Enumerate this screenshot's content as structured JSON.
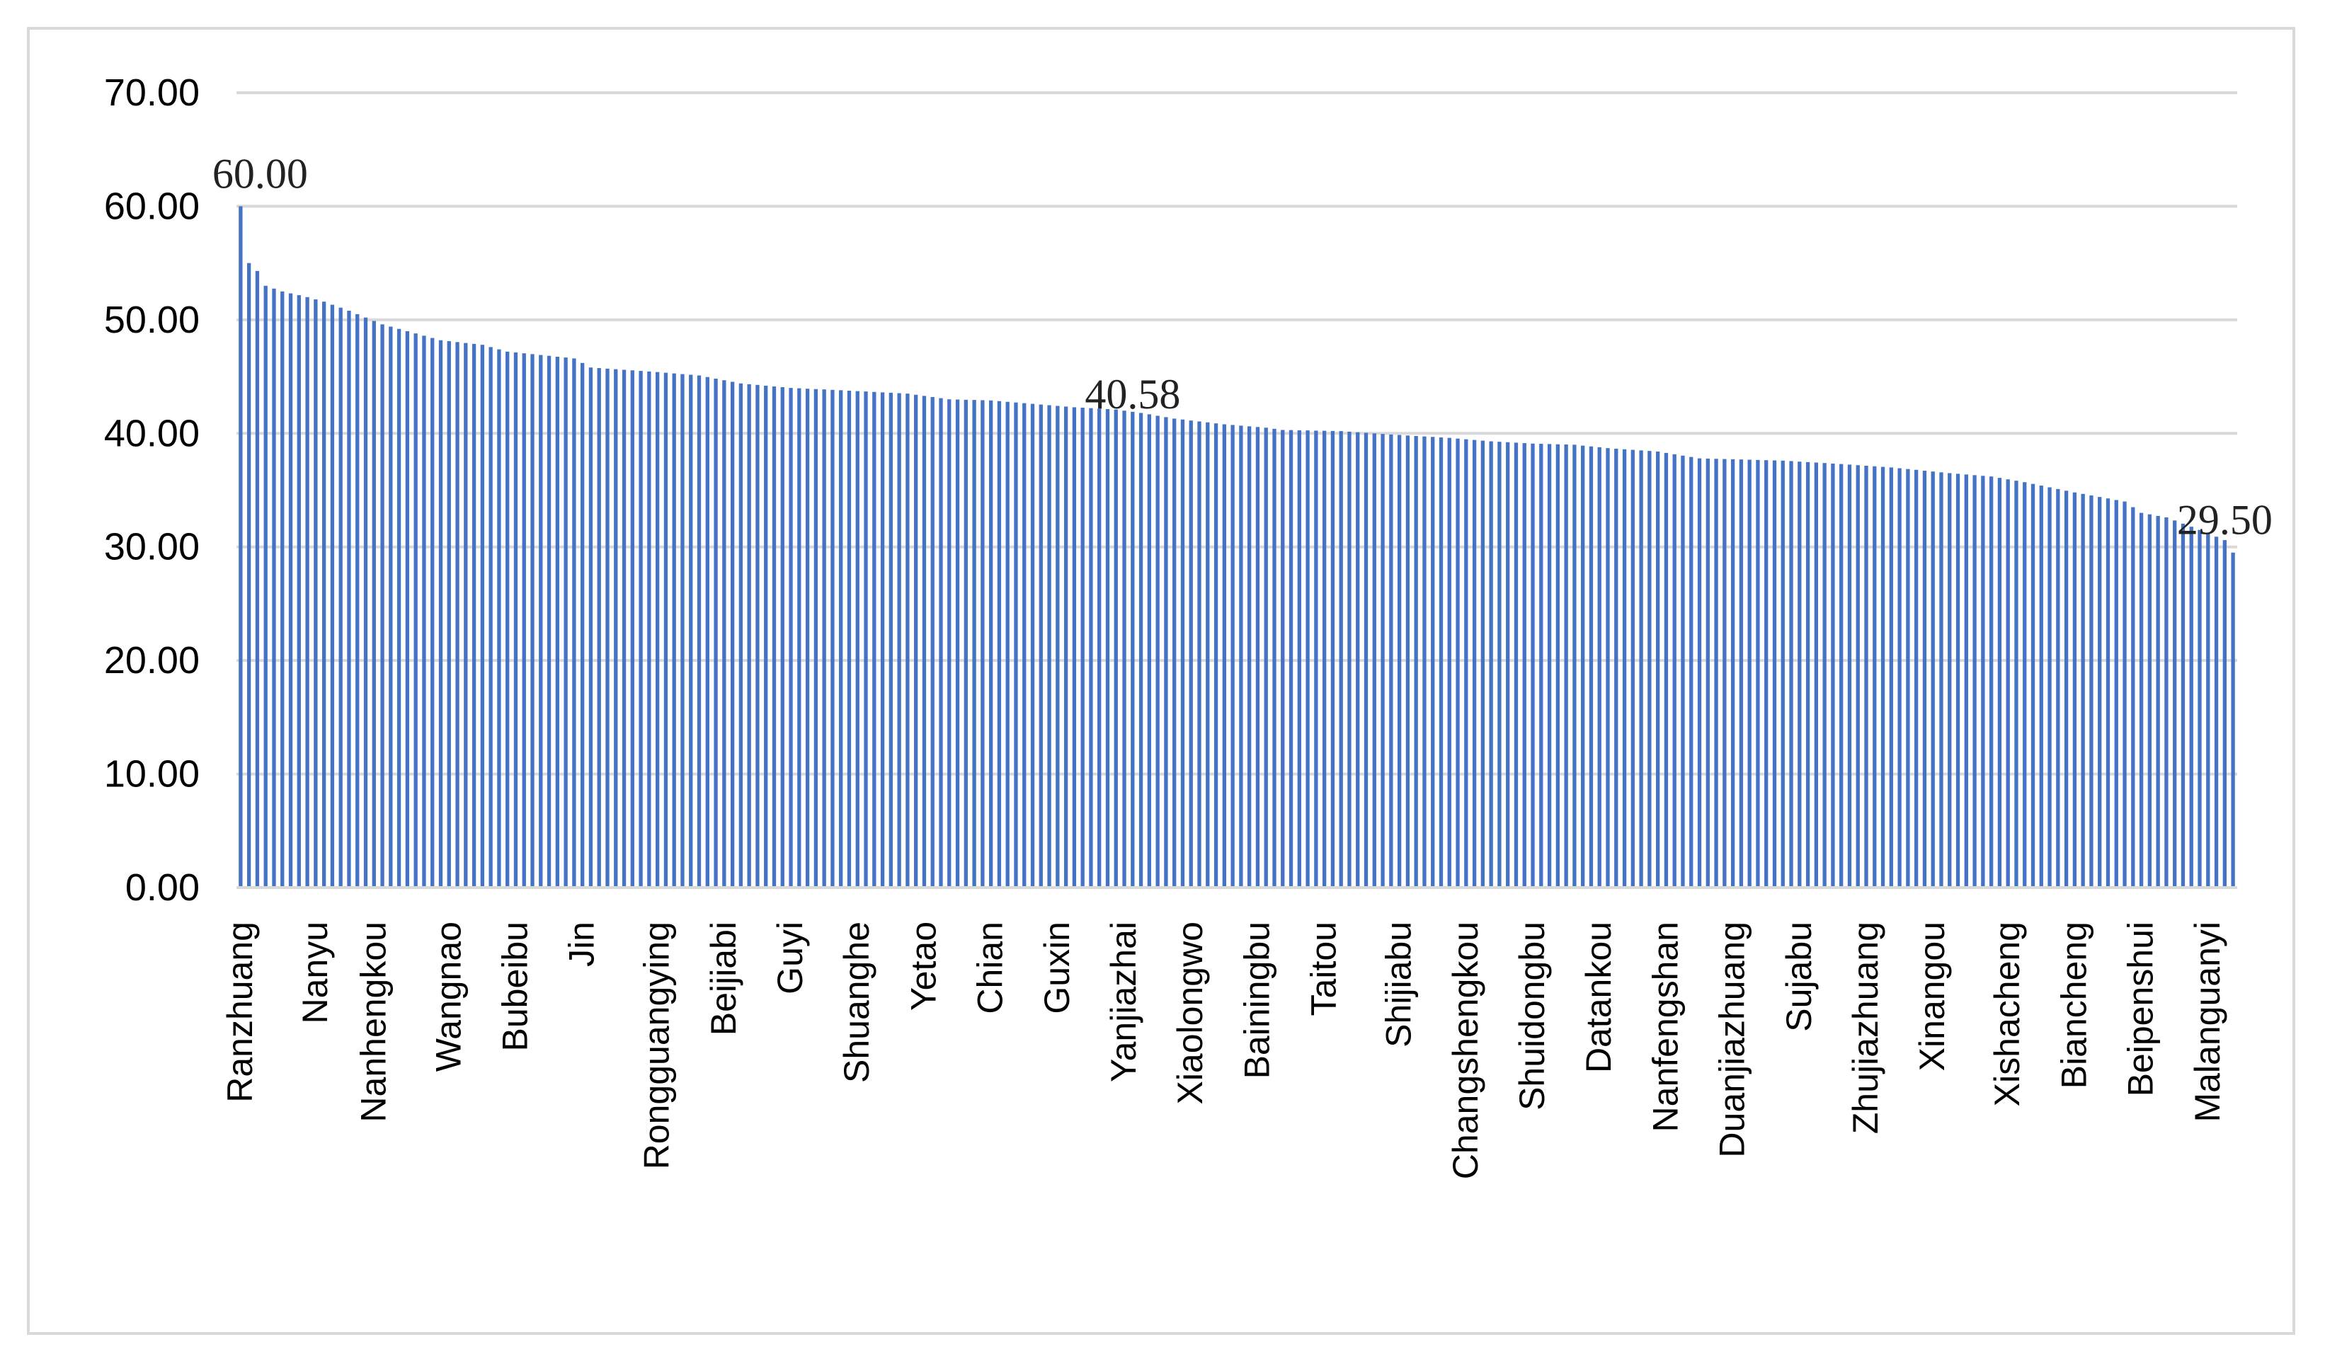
{
  "chart_data": {
    "type": "bar",
    "title": "",
    "xlabel": "",
    "ylabel": "",
    "ylim": [
      0,
      70
    ],
    "yticks": [
      "0.00",
      "10.00",
      "20.00",
      "30.00",
      "40.00",
      "50.00",
      "60.00",
      "70.00"
    ],
    "grid": true,
    "legend": "none",
    "bar_color": "#4472c4",
    "grid_color": "#d9d9d9",
    "bar_count": 240,
    "value_profile": [
      [
        0,
        60.0
      ],
      [
        1,
        55.0
      ],
      [
        2,
        54.3
      ],
      [
        3,
        53.0
      ],
      [
        5,
        52.5
      ],
      [
        8,
        52.0
      ],
      [
        10,
        51.6
      ],
      [
        13,
        50.8
      ],
      [
        17,
        49.6
      ],
      [
        20,
        49.0
      ],
      [
        24,
        48.2
      ],
      [
        29,
        47.8
      ],
      [
        32,
        47.2
      ],
      [
        40,
        46.6
      ],
      [
        42,
        45.8
      ],
      [
        50,
        45.4
      ],
      [
        55,
        45.1
      ],
      [
        60,
        44.4
      ],
      [
        66,
        44.0
      ],
      [
        72,
        43.8
      ],
      [
        80,
        43.5
      ],
      [
        85,
        43.0
      ],
      [
        90,
        42.9
      ],
      [
        95,
        42.6
      ],
      [
        100,
        42.3
      ],
      [
        105,
        42.1
      ],
      [
        108,
        41.8
      ],
      [
        112,
        41.3
      ],
      [
        118,
        40.8
      ],
      [
        123,
        40.5
      ],
      [
        125,
        40.3
      ],
      [
        132,
        40.2
      ],
      [
        138,
        39.9
      ],
      [
        145,
        39.6
      ],
      [
        150,
        39.3
      ],
      [
        155,
        39.1
      ],
      [
        160,
        39.0
      ],
      [
        164,
        38.7
      ],
      [
        170,
        38.4
      ],
      [
        175,
        37.8
      ],
      [
        185,
        37.6
      ],
      [
        192,
        37.3
      ],
      [
        198,
        37.0
      ],
      [
        205,
        36.5
      ],
      [
        210,
        36.2
      ],
      [
        214,
        35.7
      ],
      [
        220,
        34.8
      ],
      [
        226,
        34.0
      ],
      [
        228,
        33.0
      ],
      [
        231,
        32.6
      ],
      [
        235,
        31.5
      ],
      [
        238,
        30.6
      ],
      [
        239,
        29.5
      ]
    ],
    "category_labels": [
      {
        "index": 0,
        "label": "Ranzhuang"
      },
      {
        "index": 9,
        "label": "Nanyu"
      },
      {
        "index": 16,
        "label": "Nanhengkou"
      },
      {
        "index": 25,
        "label": "Wangnao"
      },
      {
        "index": 33,
        "label": "Bubeibu"
      },
      {
        "index": 41,
        "label": "Jin"
      },
      {
        "index": 50,
        "label": "Rongguangying"
      },
      {
        "index": 58,
        "label": "Beijiabi"
      },
      {
        "index": 66,
        "label": "Guyi"
      },
      {
        "index": 74,
        "label": "Shuanghe"
      },
      {
        "index": 82,
        "label": "Yetao"
      },
      {
        "index": 90,
        "label": "Chian"
      },
      {
        "index": 98,
        "label": "Guxin"
      },
      {
        "index": 106,
        "label": "Yanjiazhai"
      },
      {
        "index": 114,
        "label": "Xiaolongwo"
      },
      {
        "index": 122,
        "label": "Bainingbu"
      },
      {
        "index": 130,
        "label": "Taitou"
      },
      {
        "index": 139,
        "label": "Shijiabu"
      },
      {
        "index": 147,
        "label": "Changshengkou"
      },
      {
        "index": 155,
        "label": "Shuidongbu"
      },
      {
        "index": 163,
        "label": "Datankou"
      },
      {
        "index": 171,
        "label": "Nanfengshan"
      },
      {
        "index": 179,
        "label": "Duanjiazhuang"
      },
      {
        "index": 187,
        "label": "Sujabu"
      },
      {
        "index": 195,
        "label": "Zhujiazhuang"
      },
      {
        "index": 203,
        "label": "Xinangou"
      },
      {
        "index": 212,
        "label": "Xishacheng"
      },
      {
        "index": 220,
        "label": "Biancheng"
      },
      {
        "index": 228,
        "label": "Beipenshui"
      },
      {
        "index": 236,
        "label": "Malanguanyi"
      }
    ],
    "annotations": [
      {
        "index": 0,
        "text": "60.00",
        "value": 60.0
      },
      {
        "index": 107,
        "text": "40.58",
        "value": 40.58
      },
      {
        "index": 238,
        "text": "29.50",
        "value": 29.5
      }
    ]
  }
}
